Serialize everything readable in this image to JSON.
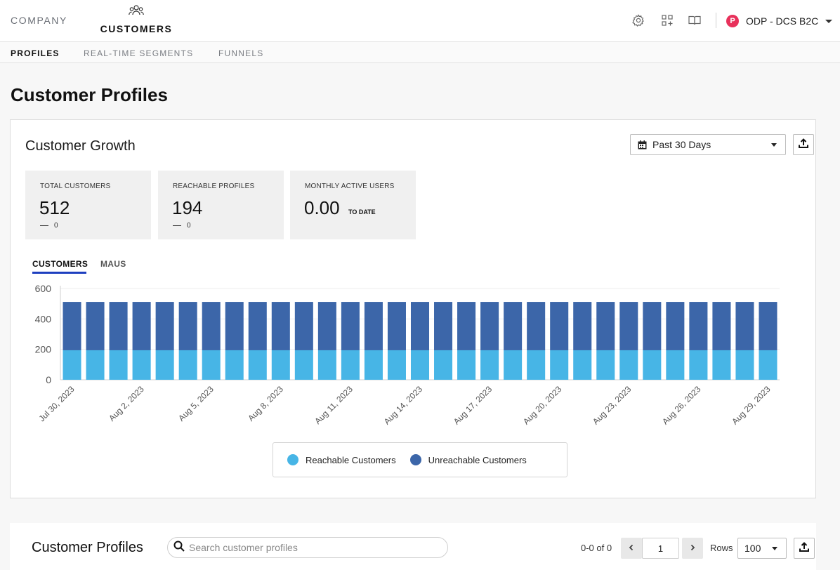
{
  "topnav": {
    "company_label": "COMPANY",
    "customers_label": "CUSTOMERS",
    "org_badge": "P",
    "org_name": "ODP - DCS B2C"
  },
  "subnav": {
    "tabs": [
      {
        "label": "PROFILES",
        "active": true
      },
      {
        "label": "REAL-TIME SEGMENTS",
        "active": false
      },
      {
        "label": "FUNNELS",
        "active": false
      }
    ]
  },
  "page": {
    "title": "Customer Profiles"
  },
  "growth": {
    "title": "Customer Growth",
    "date_range": "Past 30 Days",
    "stats": [
      {
        "label": "TOTAL CUSTOMERS",
        "value": "512",
        "delta": "0"
      },
      {
        "label": "REACHABLE PROFILES",
        "value": "194",
        "delta": "0"
      },
      {
        "label": "MONTHLY ACTIVE USERS",
        "value": "0.00",
        "suffix": "TO DATE"
      }
    ],
    "chart_tabs": [
      {
        "label": "CUSTOMERS",
        "active": true
      },
      {
        "label": "MAUS",
        "active": false
      }
    ],
    "legend": [
      {
        "label": "Reachable Customers",
        "color": "#47b5e6"
      },
      {
        "label": "Unreachable Customers",
        "color": "#3c66a9"
      }
    ]
  },
  "chart_data": {
    "type": "bar",
    "stacked": true,
    "categories": [
      "Jul 30, 2023",
      "Jul 31, 2023",
      "Aug 1, 2023",
      "Aug 2, 2023",
      "Aug 3, 2023",
      "Aug 4, 2023",
      "Aug 5, 2023",
      "Aug 6, 2023",
      "Aug 7, 2023",
      "Aug 8, 2023",
      "Aug 9, 2023",
      "Aug 10, 2023",
      "Aug 11, 2023",
      "Aug 12, 2023",
      "Aug 13, 2023",
      "Aug 14, 2023",
      "Aug 15, 2023",
      "Aug 16, 2023",
      "Aug 17, 2023",
      "Aug 18, 2023",
      "Aug 19, 2023",
      "Aug 20, 2023",
      "Aug 21, 2023",
      "Aug 22, 2023",
      "Aug 23, 2023",
      "Aug 24, 2023",
      "Aug 25, 2023",
      "Aug 26, 2023",
      "Aug 27, 2023",
      "Aug 28, 2023",
      "Aug 29, 2023"
    ],
    "tick_labels": [
      "Jul 30, 2023",
      "Aug 2, 2023",
      "Aug 5, 2023",
      "Aug 8, 2023",
      "Aug 11, 2023",
      "Aug 14, 2023",
      "Aug 17, 2023",
      "Aug 20, 2023",
      "Aug 23, 2023",
      "Aug 26, 2023",
      "Aug 29, 2023"
    ],
    "series": [
      {
        "name": "Reachable Customers",
        "color": "#47b5e6",
        "values": [
          194,
          194,
          194,
          194,
          194,
          194,
          194,
          194,
          194,
          194,
          194,
          194,
          194,
          194,
          194,
          194,
          194,
          194,
          194,
          194,
          194,
          194,
          194,
          194,
          194,
          194,
          194,
          194,
          194,
          194,
          194
        ]
      },
      {
        "name": "Unreachable Customers",
        "color": "#3c66a9",
        "values": [
          318,
          318,
          318,
          318,
          318,
          318,
          318,
          318,
          318,
          318,
          318,
          318,
          318,
          318,
          318,
          318,
          318,
          318,
          318,
          318,
          318,
          318,
          318,
          318,
          318,
          318,
          318,
          318,
          318,
          318,
          318
        ]
      }
    ],
    "yticks": [
      "0",
      "200",
      "400",
      "600"
    ],
    "ylim": [
      0,
      600
    ],
    "grid": true,
    "legend_position": "bottom"
  },
  "profiles": {
    "title": "Customer Profiles",
    "search_placeholder": "Search customer profiles",
    "pager_text": "0-0 of 0",
    "page_value": "1",
    "rows_label": "Rows",
    "rows_value": "100"
  }
}
